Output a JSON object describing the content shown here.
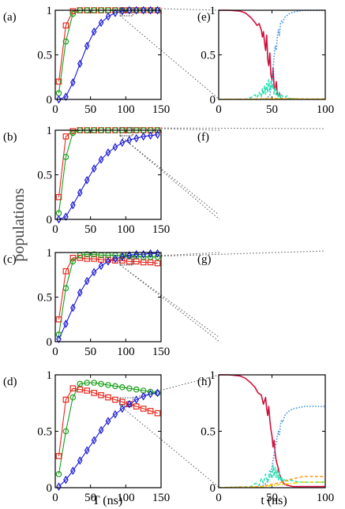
{
  "figure": {
    "ylabel": "populations",
    "xlabel_left": "T (ns)",
    "xlabel_right": "t (ns)",
    "colors": {
      "red": "#e8281e",
      "green": "#1a9e1a",
      "blue": "#1818d8",
      "crimson": "#d0103c",
      "lightblue": "#3b8ee6",
      "cyan": "#29e0b0",
      "orange": "#ff9f1a",
      "yellow": "#f2d600",
      "zoom_line": "#555555"
    }
  },
  "chart_data": [
    {
      "panel": "(a)",
      "type": "line",
      "xlim": [
        0,
        150
      ],
      "ylim": [
        0,
        1
      ],
      "xticks": [
        0,
        50,
        100,
        150
      ],
      "xtick_labels": [
        "0",
        "50",
        "100",
        "150"
      ],
      "yticks": [
        0,
        0.5,
        1
      ],
      "ytick_labels": [
        "0",
        "0.5",
        "1"
      ],
      "series": [
        {
          "color": "red",
          "marker": "square",
          "x": [
            5,
            15,
            25,
            35,
            45,
            55,
            65,
            75,
            85,
            95,
            105,
            115,
            125,
            135,
            145
          ],
          "y": [
            0.2,
            0.83,
            0.99,
            1,
            1,
            1,
            1,
            1,
            1,
            1,
            1,
            1,
            1,
            1,
            1
          ]
        },
        {
          "color": "green",
          "marker": "circle",
          "x": [
            5,
            15,
            25,
            35,
            45,
            55,
            65,
            75,
            85,
            95,
            105,
            115,
            125,
            135,
            145
          ],
          "y": [
            0.07,
            0.65,
            0.96,
            1,
            1,
            1,
            1,
            1,
            1,
            1,
            1,
            1,
            1,
            1,
            1
          ]
        },
        {
          "color": "blue",
          "marker": "diamond",
          "x": [
            5,
            15,
            25,
            35,
            45,
            55,
            65,
            75,
            85,
            95,
            105,
            115,
            125,
            135,
            145
          ],
          "y": [
            0,
            0.03,
            0.19,
            0.4,
            0.6,
            0.76,
            0.86,
            0.93,
            0.97,
            0.99,
            1,
            1,
            1,
            1,
            1
          ]
        }
      ]
    },
    {
      "panel": "(b)",
      "type": "line",
      "xlim": [
        0,
        150
      ],
      "ylim": [
        0,
        1
      ],
      "xticks": [
        0,
        50,
        100,
        150
      ],
      "xtick_labels": [
        "0",
        "50",
        "100",
        "150"
      ],
      "yticks": [
        0,
        0.5,
        1
      ],
      "ytick_labels": [
        "0",
        "0.5",
        "1"
      ],
      "series": [
        {
          "color": "red",
          "marker": "square",
          "x": [
            5,
            15,
            25,
            35,
            45,
            55,
            65,
            75,
            85,
            95,
            105,
            115,
            125,
            135,
            145
          ],
          "y": [
            0.25,
            0.93,
            0.99,
            1,
            1,
            1,
            1,
            1,
            1,
            1,
            1,
            1,
            1,
            1,
            1
          ]
        },
        {
          "color": "green",
          "marker": "circle",
          "x": [
            5,
            15,
            25,
            35,
            45,
            55,
            65,
            75,
            85,
            95,
            105,
            115,
            125,
            135,
            145
          ],
          "y": [
            0.07,
            0.7,
            0.97,
            1,
            1,
            1,
            1,
            1,
            1,
            1,
            1,
            1,
            1,
            1,
            1
          ]
        },
        {
          "color": "blue",
          "marker": "diamond",
          "x": [
            5,
            15,
            25,
            35,
            45,
            55,
            65,
            75,
            85,
            95,
            105,
            115,
            125,
            135,
            145
          ],
          "y": [
            0,
            0.03,
            0.16,
            0.3,
            0.44,
            0.57,
            0.67,
            0.75,
            0.81,
            0.86,
            0.89,
            0.91,
            0.93,
            0.94,
            0.95
          ]
        }
      ]
    },
    {
      "panel": "(c)",
      "type": "line",
      "xlim": [
        0,
        150
      ],
      "ylim": [
        0,
        1
      ],
      "xticks": [
        0,
        50,
        100,
        150
      ],
      "xtick_labels": [
        "0",
        "50",
        "100",
        "150"
      ],
      "yticks": [
        0,
        0.5,
        1
      ],
      "ytick_labels": [
        "0",
        "0.5",
        "1"
      ],
      "series": [
        {
          "color": "red",
          "marker": "square",
          "x": [
            5,
            15,
            25,
            35,
            45,
            55,
            65,
            75,
            85,
            95,
            105,
            115,
            125,
            135,
            145
          ],
          "y": [
            0.25,
            0.79,
            0.94,
            0.94,
            0.93,
            0.93,
            0.92,
            0.92,
            0.91,
            0.91,
            0.9,
            0.9,
            0.89,
            0.89,
            0.88
          ]
        },
        {
          "color": "green",
          "marker": "circle",
          "x": [
            5,
            15,
            25,
            35,
            45,
            55,
            65,
            75,
            85,
            95,
            105,
            115,
            125,
            135,
            145
          ],
          "y": [
            0.08,
            0.6,
            0.9,
            0.97,
            0.98,
            0.98,
            0.97,
            0.97,
            0.97,
            0.96,
            0.96,
            0.96,
            0.95,
            0.95,
            0.95
          ]
        },
        {
          "color": "blue",
          "marker": "diamond",
          "x": [
            5,
            15,
            25,
            35,
            45,
            55,
            65,
            75,
            85,
            95,
            105,
            115,
            125,
            135,
            145
          ],
          "y": [
            0.03,
            0.2,
            0.38,
            0.55,
            0.68,
            0.78,
            0.85,
            0.9,
            0.93,
            0.95,
            0.97,
            0.98,
            0.98,
            0.99,
            0.99
          ]
        }
      ]
    },
    {
      "panel": "(d)",
      "type": "line",
      "xlim": [
        0,
        150
      ],
      "ylim": [
        0,
        1
      ],
      "xticks": [
        0,
        50,
        100,
        150
      ],
      "xtick_labels": [
        "0",
        "50",
        "100",
        "150"
      ],
      "yticks": [
        0,
        0.5,
        1
      ],
      "ytick_labels": [
        "0",
        "0.5",
        "1"
      ],
      "series": [
        {
          "color": "red",
          "marker": "square",
          "x": [
            5,
            15,
            25,
            35,
            45,
            55,
            65,
            75,
            85,
            95,
            105,
            115,
            125,
            135,
            145
          ],
          "y": [
            0.28,
            0.78,
            0.88,
            0.87,
            0.86,
            0.84,
            0.82,
            0.8,
            0.78,
            0.76,
            0.74,
            0.72,
            0.7,
            0.68,
            0.66
          ]
        },
        {
          "color": "green",
          "marker": "circle",
          "x": [
            5,
            15,
            25,
            35,
            45,
            55,
            65,
            75,
            85,
            95,
            105,
            115,
            125,
            135,
            145
          ],
          "y": [
            0.12,
            0.5,
            0.8,
            0.92,
            0.93,
            0.93,
            0.92,
            0.91,
            0.9,
            0.89,
            0.88,
            0.87,
            0.86,
            0.85,
            0.84
          ]
        },
        {
          "color": "blue",
          "marker": "diamond",
          "x": [
            5,
            15,
            25,
            35,
            45,
            55,
            65,
            75,
            85,
            95,
            105,
            115,
            125,
            135,
            145
          ],
          "y": [
            0.01,
            0.07,
            0.15,
            0.24,
            0.33,
            0.42,
            0.51,
            0.59,
            0.65,
            0.7,
            0.74,
            0.78,
            0.81,
            0.83,
            0.84
          ]
        }
      ]
    },
    {
      "panel": "(e)",
      "type": "line",
      "xlim": [
        0,
        100
      ],
      "ylim": [
        0,
        1
      ],
      "xticks": [
        0,
        50,
        100
      ],
      "xtick_labels": [
        "0",
        "50",
        "100"
      ],
      "yticks": [
        0,
        0.5,
        1
      ],
      "ytick_labels": [
        "0",
        "0.5",
        "1"
      ],
      "series": [
        {
          "color": "crimson",
          "style": "solid",
          "x": [
            0,
            10,
            20,
            25,
            30,
            33,
            36,
            38,
            40,
            41,
            42,
            43,
            44,
            45,
            46,
            47,
            48,
            49,
            50,
            51,
            52,
            53,
            54,
            55,
            56,
            57,
            58,
            59,
            60,
            62,
            65,
            70,
            80,
            100
          ],
          "y": [
            1,
            1,
            0.99,
            0.97,
            0.92,
            0.88,
            0.83,
            0.85,
            0.78,
            0.7,
            0.76,
            0.64,
            0.55,
            0.72,
            0.45,
            0.38,
            0.52,
            0.28,
            0.22,
            0.35,
            0.14,
            0.1,
            0.2,
            0.06,
            0.04,
            0.08,
            0.02,
            0.01,
            0,
            0,
            0,
            0,
            0,
            0
          ]
        },
        {
          "color": "lightblue",
          "style": "dotted",
          "x": [
            0,
            40,
            45,
            48,
            50,
            51,
            52,
            53,
            54,
            55,
            56,
            57,
            58,
            59,
            60,
            62,
            64,
            66,
            68,
            70,
            75,
            80,
            90,
            100
          ],
          "y": [
            0,
            0,
            0.01,
            0.05,
            0.2,
            0.35,
            0.48,
            0.6,
            0.55,
            0.7,
            0.78,
            0.72,
            0.85,
            0.88,
            0.86,
            0.92,
            0.94,
            0.96,
            0.97,
            0.98,
            0.99,
            1,
            1,
            1
          ]
        },
        {
          "color": "cyan",
          "style": "dashed",
          "x": [
            0,
            25,
            30,
            34,
            36,
            38,
            40,
            41,
            42,
            43,
            44,
            45,
            46,
            47,
            48,
            49,
            50,
            51,
            52,
            53,
            54,
            55,
            56,
            57,
            58,
            59,
            60,
            62,
            64,
            66,
            70,
            75,
            80,
            100
          ],
          "y": [
            0,
            0,
            0.02,
            0.05,
            0.02,
            0.08,
            0.03,
            0.12,
            0.05,
            0.15,
            0.06,
            0.18,
            0.08,
            0.22,
            0.1,
            0.2,
            0.12,
            0.17,
            0.06,
            0.14,
            0.05,
            0.1,
            0.03,
            0.08,
            0.02,
            0.05,
            0.03,
            0.02,
            0.04,
            0.01,
            0.01,
            0,
            0,
            0
          ]
        },
        {
          "color": "orange",
          "style": "dashed",
          "x": [
            0,
            40,
            50,
            60,
            70,
            80,
            100
          ],
          "y": [
            0,
            0.005,
            0.01,
            0.01,
            0.008,
            0.005,
            0.005
          ]
        },
        {
          "color": "yellow",
          "style": "dashdot",
          "x": [
            0,
            40,
            50,
            60,
            70,
            80,
            100
          ],
          "y": [
            0,
            0.002,
            0.005,
            0.004,
            0.003,
            0.002,
            0.002
          ]
        }
      ]
    },
    {
      "panel": "(f)",
      "type": "empty"
    },
    {
      "panel": "(g)",
      "type": "empty"
    },
    {
      "panel": "(h)",
      "type": "line",
      "xlim": [
        0,
        100
      ],
      "ylim": [
        0,
        1
      ],
      "xticks": [
        0,
        50,
        100
      ],
      "xtick_labels": [
        "0",
        "50",
        "100"
      ],
      "yticks": [
        0,
        0.5,
        1
      ],
      "ytick_labels": [
        "0",
        "0.5",
        "1"
      ],
      "series": [
        {
          "color": "crimson",
          "style": "solid",
          "x": [
            0,
            10,
            20,
            25,
            30,
            34,
            37,
            40,
            42,
            44,
            45,
            46,
            47,
            48,
            49,
            50,
            51,
            52,
            53,
            54,
            55,
            56,
            57,
            58,
            59,
            60,
            62,
            65,
            70,
            80,
            100
          ],
          "y": [
            1,
            1,
            0.99,
            0.97,
            0.93,
            0.89,
            0.84,
            0.82,
            0.74,
            0.8,
            0.7,
            0.64,
            0.72,
            0.6,
            0.52,
            0.46,
            0.36,
            0.42,
            0.3,
            0.24,
            0.2,
            0.17,
            0.12,
            0.1,
            0.07,
            0.05,
            0.03,
            0.02,
            0.01,
            0.01,
            0.01
          ]
        },
        {
          "color": "lightblue",
          "style": "dotted",
          "x": [
            0,
            40,
            45,
            48,
            50,
            52,
            54,
            55,
            56,
            57,
            58,
            59,
            60,
            62,
            64,
            66,
            68,
            70,
            75,
            80,
            90,
            100
          ],
          "y": [
            0,
            0.01,
            0.04,
            0.1,
            0.18,
            0.3,
            0.4,
            0.46,
            0.5,
            0.46,
            0.56,
            0.6,
            0.58,
            0.64,
            0.66,
            0.68,
            0.69,
            0.7,
            0.71,
            0.72,
            0.72,
            0.72
          ]
        },
        {
          "color": "cyan",
          "style": "dashed",
          "x": [
            0,
            30,
            35,
            38,
            40,
            42,
            44,
            46,
            48,
            50,
            51,
            52,
            53,
            54,
            55,
            56,
            57,
            58,
            59,
            60,
            62,
            64,
            66,
            70,
            75,
            80,
            100
          ],
          "y": [
            0,
            0.01,
            0.04,
            0.02,
            0.08,
            0.04,
            0.12,
            0.05,
            0.15,
            0.08,
            0.2,
            0.1,
            0.18,
            0.09,
            0.16,
            0.07,
            0.13,
            0.06,
            0.1,
            0.05,
            0.08,
            0.06,
            0.07,
            0.06,
            0.05,
            0.05,
            0.05
          ]
        },
        {
          "color": "orange",
          "style": "dashed",
          "x": [
            0,
            40,
            50,
            60,
            65,
            70,
            80,
            90,
            100
          ],
          "y": [
            0,
            0.01,
            0.03,
            0.05,
            0.07,
            0.08,
            0.1,
            0.1,
            0.1
          ]
        },
        {
          "color": "yellow",
          "style": "dashdot",
          "x": [
            0,
            40,
            50,
            60,
            70,
            80,
            100
          ],
          "y": [
            0,
            0.005,
            0.02,
            0.03,
            0.04,
            0.05,
            0.05
          ]
        }
      ]
    }
  ]
}
